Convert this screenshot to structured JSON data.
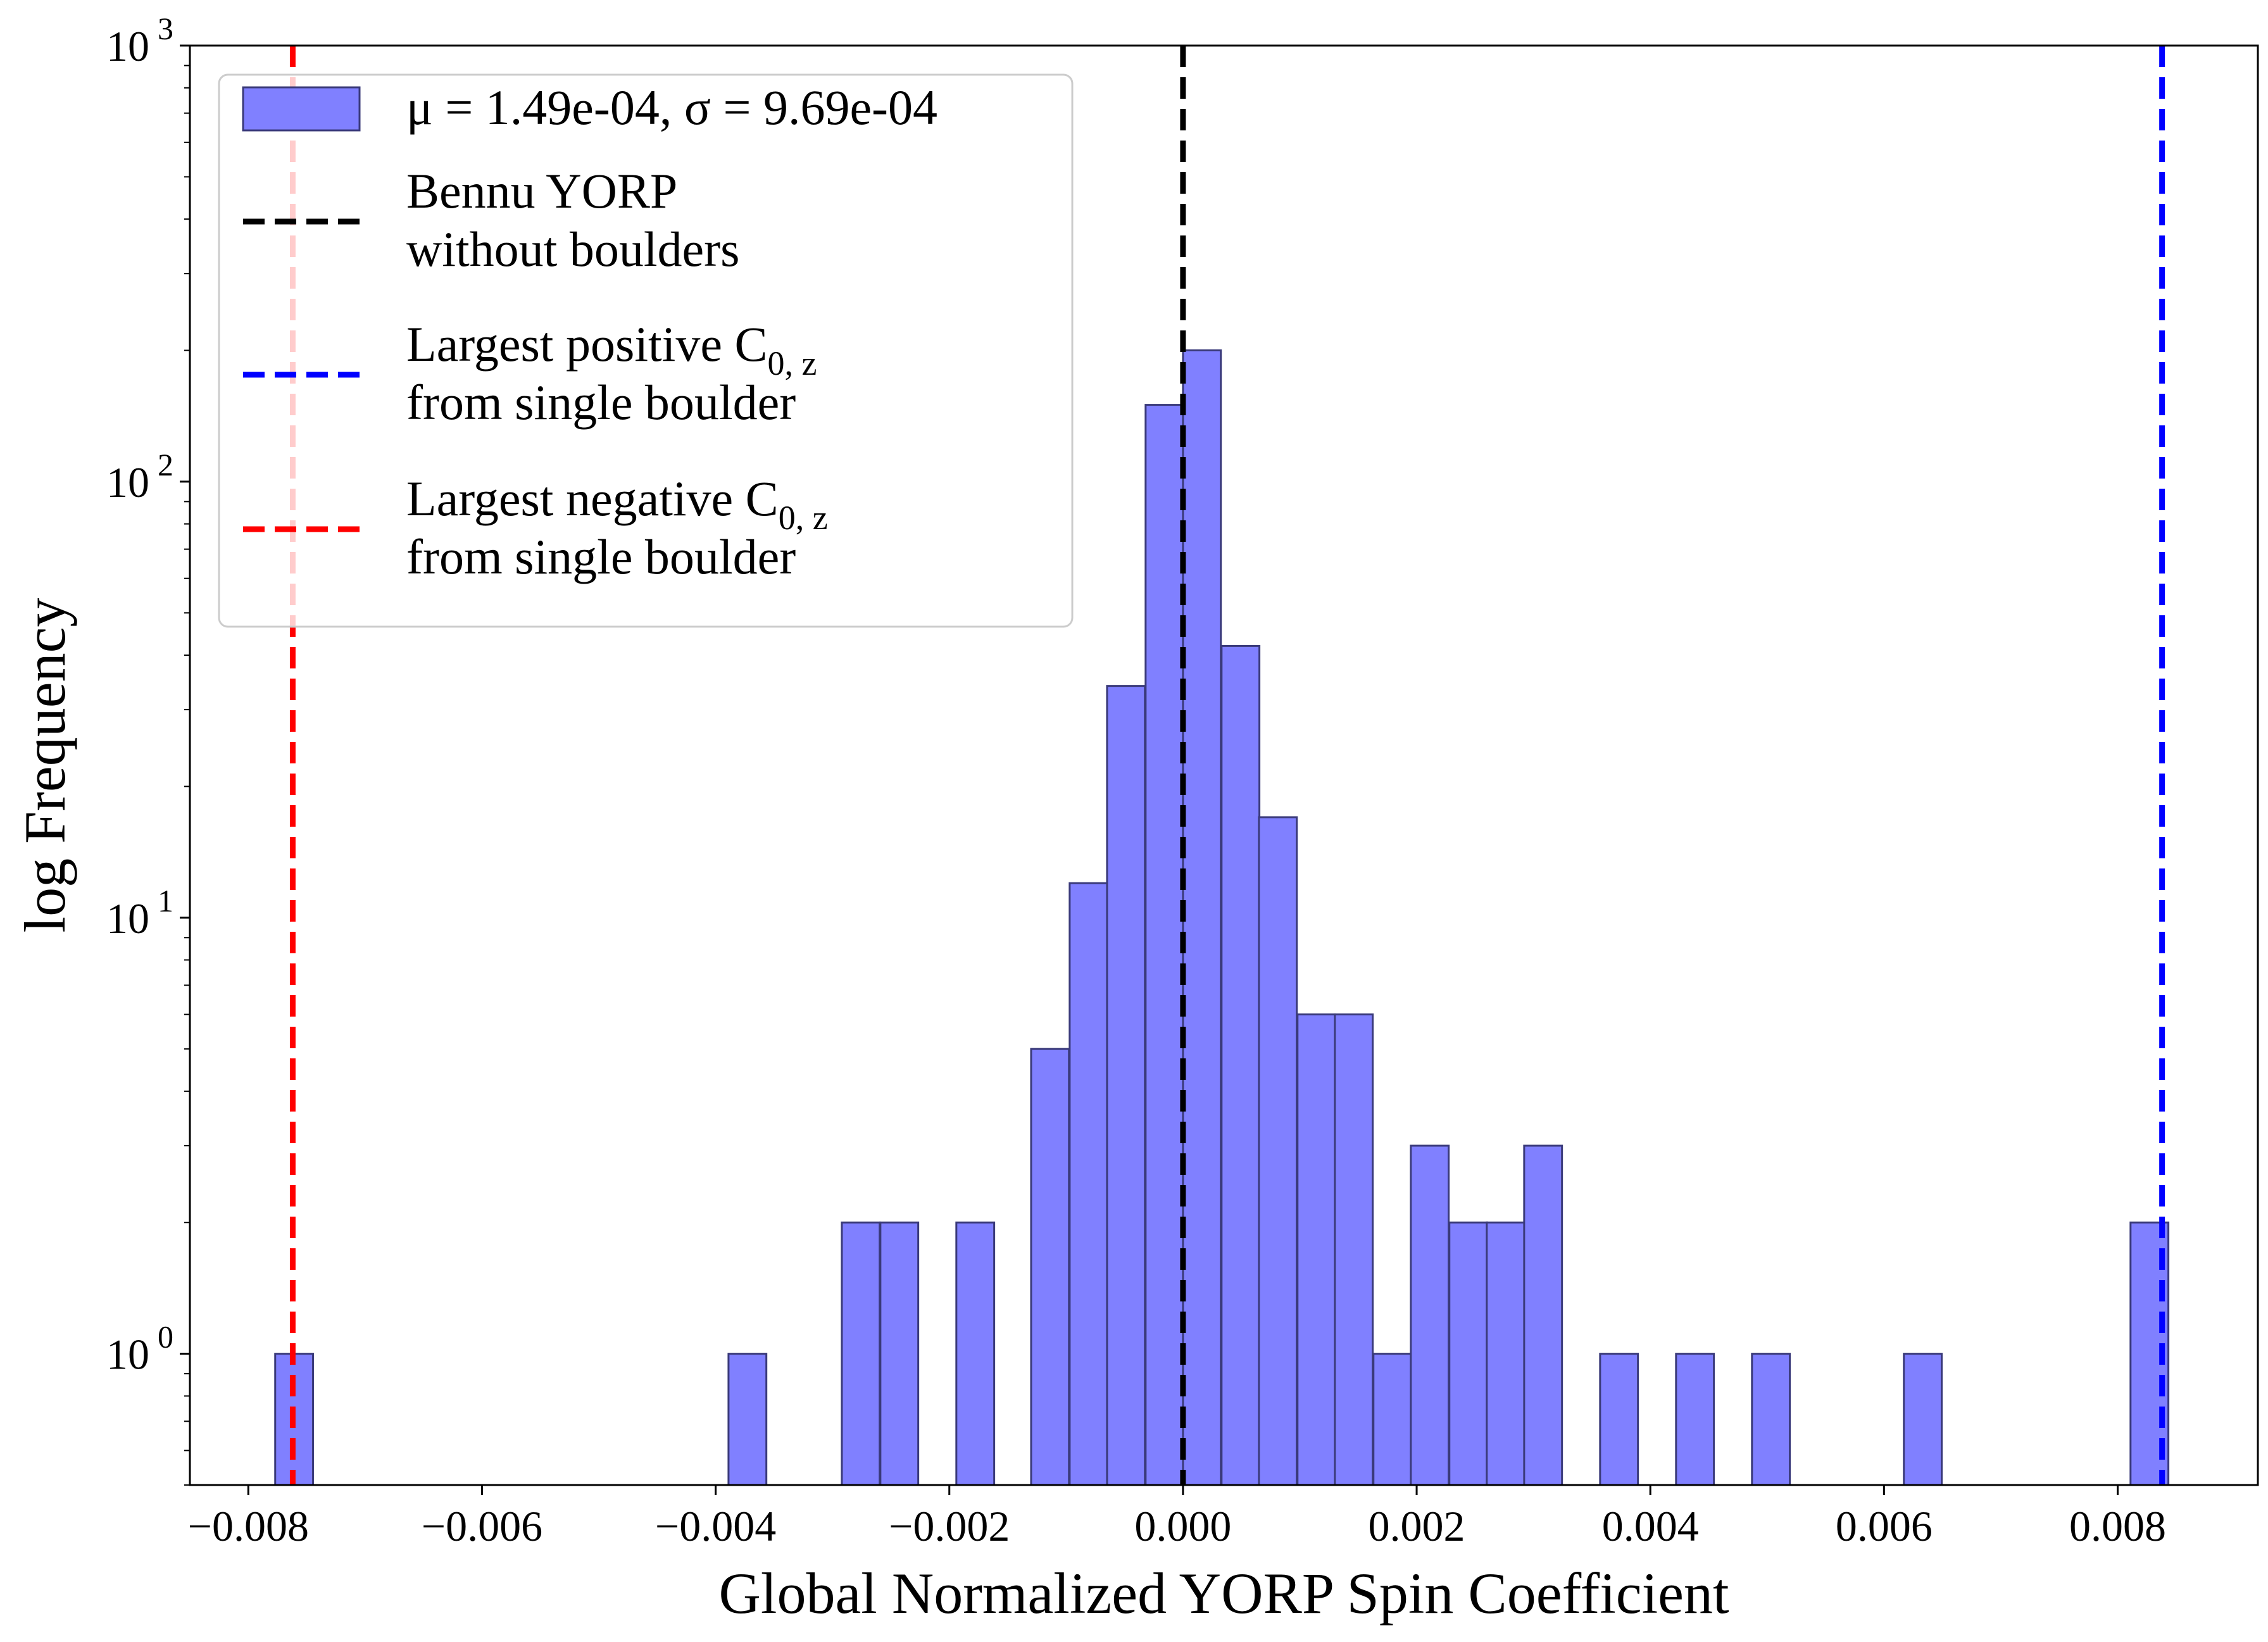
{
  "chart_data": {
    "type": "bar",
    "title": "",
    "xlabel": "Global Normalized YORP Spin Coefficient",
    "ylabel": "log Frequency",
    "yscale": "log",
    "xlim": [
      -0.0085,
      0.0092
    ],
    "ylim": [
      0.5,
      1000
    ],
    "x_ticks": [
      "−0.008",
      "−0.006",
      "−0.004",
      "−0.002",
      "0.000",
      "0.002",
      "0.004",
      "0.006",
      "0.008"
    ],
    "x_tick_values": [
      -0.008,
      -0.006,
      -0.004,
      -0.002,
      0.0,
      0.002,
      0.004,
      0.006,
      0.008
    ],
    "y_ticks": [
      {
        "base": "10",
        "exp": "0",
        "value": 1
      },
      {
        "base": "10",
        "exp": "1",
        "value": 10
      },
      {
        "base": "10",
        "exp": "2",
        "value": 100
      },
      {
        "base": "10",
        "exp": "3",
        "value": 1000
      }
    ],
    "bin_width": 0.000324,
    "bin_edges_start": -0.00777,
    "bins": [
      {
        "x": -0.00777,
        "count": 1
      },
      {
        "x": -0.00389,
        "count": 1
      },
      {
        "x": -0.00292,
        "count": 2
      },
      {
        "x": -0.00259,
        "count": 2
      },
      {
        "x": -0.00194,
        "count": 2
      },
      {
        "x": -0.0013,
        "count": 5
      },
      {
        "x": -0.00097,
        "count": 12
      },
      {
        "x": -0.00065,
        "count": 34
      },
      {
        "x": -0.00032,
        "count": 150
      },
      {
        "x": 0.0,
        "count": 200
      },
      {
        "x": 0.00033,
        "count": 42
      },
      {
        "x": 0.00065,
        "count": 17
      },
      {
        "x": 0.00098,
        "count": 6
      },
      {
        "x": 0.0013,
        "count": 6
      },
      {
        "x": 0.00163,
        "count": 1
      },
      {
        "x": 0.00195,
        "count": 3
      },
      {
        "x": 0.00228,
        "count": 2
      },
      {
        "x": 0.0026,
        "count": 2
      },
      {
        "x": 0.00292,
        "count": 3
      },
      {
        "x": 0.00357,
        "count": 1
      },
      {
        "x": 0.00422,
        "count": 1
      },
      {
        "x": 0.00487,
        "count": 1
      },
      {
        "x": 0.00617,
        "count": 1
      },
      {
        "x": 0.00811,
        "count": 2
      }
    ],
    "vlines": [
      {
        "x": 0.0,
        "color": "#000000",
        "style": "dashed"
      },
      {
        "x": 0.00838,
        "color": "#0000ff",
        "style": "dashed"
      },
      {
        "x": -0.00762,
        "color": "#ff0000",
        "style": "dashed"
      }
    ],
    "colors": {
      "bar_fill": "#8080ff",
      "bar_edge": "#3a3a7a"
    },
    "grid": false,
    "legend": {
      "placement": "top-left",
      "entries": [
        {
          "kind": "patch",
          "color": "#8080ff",
          "lines": [
            "μ = 1.49e-04, σ = 9.69e-04"
          ]
        },
        {
          "kind": "line",
          "color": "#000000",
          "lines": [
            "Bennu YORP",
            "without boulders"
          ]
        },
        {
          "kind": "line",
          "color": "#0000ff",
          "lines": [
            "Largest positive C",
            "from single boulder"
          ],
          "subscript": "0, z"
        },
        {
          "kind": "line",
          "color": "#ff0000",
          "lines": [
            "Largest negative C",
            "from single boulder"
          ],
          "subscript": "0, z"
        }
      ]
    }
  }
}
